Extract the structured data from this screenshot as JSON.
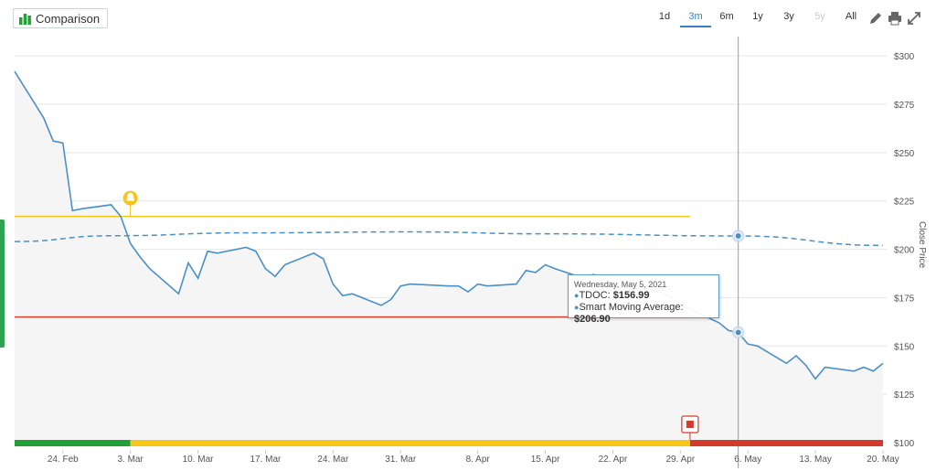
{
  "toolbar": {
    "comparison_label": "Comparison",
    "ranges": [
      "1d",
      "3m",
      "6m",
      "1y",
      "3y",
      "5y",
      "All"
    ],
    "active_range": "3m",
    "disabled_ranges": [
      "5y"
    ],
    "tools": [
      "pencil-icon",
      "print-icon",
      "expand-icon"
    ]
  },
  "tooltip": {
    "date": "Wednesday, May 5, 2021",
    "line1_label": "TDOC:",
    "line1_value": "$156.99",
    "line2_label": "Smart Moving Average:",
    "line2_value": "$206.90"
  },
  "colors": {
    "price_line": "#4a90c8",
    "sma_line": "#4a90c8",
    "upper_band": "#f5c518",
    "lower_band": "#d9402b",
    "signal_green": "#22a038",
    "signal_yellow": "#f5c518",
    "signal_red": "#d33a2c",
    "area_fill": "#f5f5f5",
    "accent": "#3a7fc1"
  },
  "chart_data": {
    "type": "line",
    "x_tick_labels": [
      "24. Feb",
      "3. Mar",
      "10. Mar",
      "17. Mar",
      "24. Mar",
      "31. Mar",
      "8. Apr",
      "15. Apr",
      "22. Apr",
      "29. Apr",
      "6. May",
      "13. May",
      "20. May"
    ],
    "xlim": [
      "2021-02-19",
      "2021-05-20"
    ],
    "ylabel": "Close Price",
    "y_tick_labels": [
      "$100",
      "$125",
      "$150",
      "$175",
      "$200",
      "$225",
      "$250",
      "$275",
      "$300"
    ],
    "ylim": [
      100,
      310
    ],
    "grid": true,
    "series": [
      {
        "name": "TDOC",
        "x": [
          "2021-02-19",
          "2021-02-22",
          "2021-02-23",
          "2021-02-24",
          "2021-02-25",
          "2021-02-26",
          "2021-03-01",
          "2021-03-02",
          "2021-03-03",
          "2021-03-04",
          "2021-03-05",
          "2021-03-08",
          "2021-03-09",
          "2021-03-10",
          "2021-03-11",
          "2021-03-12",
          "2021-03-15",
          "2021-03-16",
          "2021-03-17",
          "2021-03-18",
          "2021-03-19",
          "2021-03-22",
          "2021-03-23",
          "2021-03-24",
          "2021-03-25",
          "2021-03-26",
          "2021-03-29",
          "2021-03-30",
          "2021-03-31",
          "2021-04-01",
          "2021-04-05",
          "2021-04-06",
          "2021-04-07",
          "2021-04-08",
          "2021-04-09",
          "2021-04-12",
          "2021-04-13",
          "2021-04-14",
          "2021-04-15",
          "2021-04-16",
          "2021-04-19",
          "2021-04-20",
          "2021-04-21",
          "2021-04-22",
          "2021-04-23",
          "2021-04-26",
          "2021-04-27",
          "2021-04-28",
          "2021-04-29",
          "2021-04-30",
          "2021-05-03",
          "2021-05-04",
          "2021-05-05",
          "2021-05-06",
          "2021-05-07",
          "2021-05-10",
          "2021-05-11",
          "2021-05-12",
          "2021-05-13",
          "2021-05-14",
          "2021-05-17",
          "2021-05-18",
          "2021-05-19",
          "2021-05-20"
        ],
        "y": [
          292,
          268,
          256,
          255,
          220,
          221,
          223,
          217,
          203,
          196,
          190,
          177,
          193,
          185,
          199,
          198,
          201,
          199,
          190,
          186,
          192,
          198,
          195,
          182,
          176,
          177,
          171,
          174,
          181,
          182,
          181,
          181,
          178,
          182,
          181,
          182,
          189,
          188,
          192,
          190,
          185,
          187,
          185,
          181,
          180,
          179,
          178,
          175,
          171,
          169,
          162,
          158,
          157,
          151,
          150,
          141,
          145,
          140,
          133,
          139,
          137,
          139,
          137,
          141
        ]
      },
      {
        "name": "Smart Moving Average",
        "x": [
          "2021-02-19",
          "2021-03-01",
          "2021-03-15",
          "2021-04-01",
          "2021-04-15",
          "2021-05-05",
          "2021-05-20"
        ],
        "y": [
          204,
          207,
          208.5,
          209,
          208,
          206.9,
          202
        ]
      }
    ],
    "bands": [
      {
        "kind": "upper",
        "y": 217,
        "x_start": "2021-02-19",
        "x_end": "2021-04-30"
      },
      {
        "kind": "lower",
        "y": 165,
        "x_start": "2021-02-19",
        "x_end": "2021-04-30"
      }
    ],
    "signal_bar": [
      {
        "from": "2021-02-19",
        "to": "2021-03-03",
        "signal": "green"
      },
      {
        "from": "2021-03-03",
        "to": "2021-04-30",
        "signal": "yellow"
      },
      {
        "from": "2021-04-30",
        "to": "2021-05-20",
        "signal": "red"
      }
    ],
    "markers": [
      {
        "kind": "bell",
        "date": "2021-03-03",
        "y": 217
      },
      {
        "kind": "stop",
        "date": "2021-04-30"
      }
    ],
    "crosshair_date": "2021-05-05"
  }
}
